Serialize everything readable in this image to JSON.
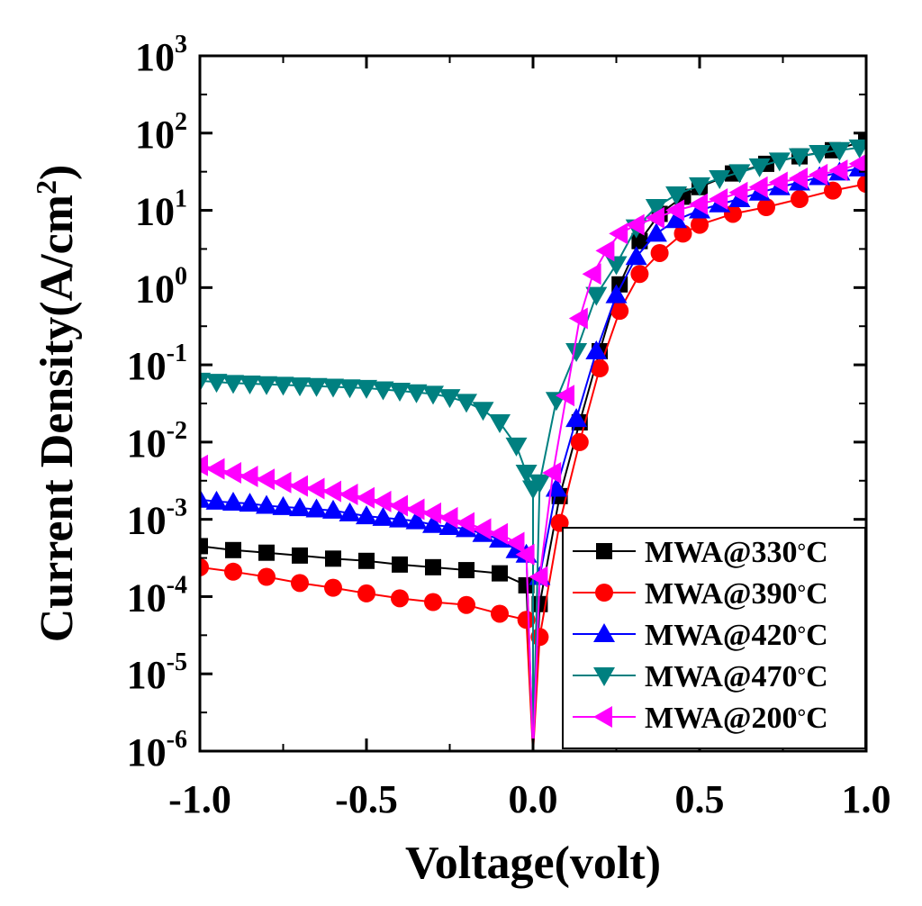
{
  "chart_data": {
    "type": "scatter",
    "title": "",
    "xlabel": "Voltage(volt)",
    "ylabel": "Current Density(A/cm²)",
    "ylabel_parts": {
      "main": "Current Density(A/cm",
      "sup": "2",
      "close": ")"
    },
    "xlim": [
      -1.0,
      1.0
    ],
    "ylim_log10": [
      -6,
      3
    ],
    "yscale": "log",
    "x_ticks": [
      -1.0,
      -0.5,
      0.0,
      0.5,
      1.0
    ],
    "x_tick_labels": [
      "-1.0",
      "-0.5",
      "0.0",
      "0.5",
      "1.0"
    ],
    "y_ticks_exp": [
      -6,
      -5,
      -4,
      -3,
      -2,
      -1,
      0,
      1,
      2,
      3
    ],
    "y_tick_labels": [
      {
        "base": "10",
        "exp": "-6"
      },
      {
        "base": "10",
        "exp": "-5"
      },
      {
        "base": "10",
        "exp": "-4"
      },
      {
        "base": "10",
        "exp": "-3"
      },
      {
        "base": "10",
        "exp": "-2"
      },
      {
        "base": "10",
        "exp": "-1"
      },
      {
        "base": "10",
        "exp": "0"
      },
      {
        "base": "10",
        "exp": "1"
      },
      {
        "base": "10",
        "exp": "2"
      },
      {
        "base": "10",
        "exp": "3"
      }
    ],
    "legend_position": "bottom-right",
    "series": [
      {
        "name": "MWA@330°C",
        "label_main": "MWA@330",
        "label_deg": "°",
        "label_unit": "C",
        "color": "#000000",
        "marker": "square",
        "x": [
          -1.0,
          -0.9,
          -0.8,
          -0.7,
          -0.6,
          -0.5,
          -0.4,
          -0.3,
          -0.2,
          -0.1,
          -0.02,
          0.02,
          0.08,
          0.14,
          0.2,
          0.26,
          0.32,
          0.38,
          0.45,
          0.5,
          0.6,
          0.7,
          0.8,
          0.9,
          1.0
        ],
        "y": [
          0.00045,
          0.0004,
          0.00037,
          0.00034,
          0.00031,
          0.00029,
          0.00026,
          0.00024,
          0.00022,
          0.0002,
          0.00014,
          8e-05,
          0.002,
          0.018,
          0.15,
          1.1,
          4.0,
          9.0,
          15,
          20,
          30,
          40,
          50,
          60,
          80
        ]
      },
      {
        "name": "MWA@390°C",
        "label_main": "MWA@390",
        "label_deg": "°",
        "label_unit": "C",
        "color": "#ff0000",
        "marker": "circle",
        "x": [
          -1.0,
          -0.9,
          -0.8,
          -0.7,
          -0.6,
          -0.5,
          -0.4,
          -0.3,
          -0.2,
          -0.1,
          -0.02,
          0.02,
          0.08,
          0.14,
          0.2,
          0.26,
          0.32,
          0.38,
          0.45,
          0.5,
          0.6,
          0.7,
          0.8,
          0.9,
          1.0
        ],
        "y": [
          0.00024,
          0.00021,
          0.00018,
          0.00015,
          0.00013,
          0.00011,
          9.5e-05,
          8.5e-05,
          7.8e-05,
          6e-05,
          5e-05,
          3e-05,
          0.0009,
          0.01,
          0.09,
          0.5,
          1.5,
          2.8,
          5.0,
          6.5,
          9.0,
          11,
          14,
          18,
          22
        ]
      },
      {
        "name": "MWA@420°C",
        "label_main": "MWA@420",
        "label_deg": "°",
        "label_unit": "C",
        "color": "#0000ff",
        "marker": "triangle-up",
        "x": [
          -1.0,
          -0.95,
          -0.9,
          -0.85,
          -0.8,
          -0.75,
          -0.7,
          -0.65,
          -0.6,
          -0.55,
          -0.5,
          -0.45,
          -0.4,
          -0.35,
          -0.3,
          -0.25,
          -0.2,
          -0.15,
          -0.1,
          -0.05,
          -0.02,
          0.02,
          0.07,
          0.13,
          0.19,
          0.25,
          0.31,
          0.37,
          0.43,
          0.5,
          0.56,
          0.62,
          0.68,
          0.74,
          0.8,
          0.86,
          0.92,
          0.98
        ],
        "y": [
          0.0018,
          0.0017,
          0.00165,
          0.0016,
          0.0015,
          0.00145,
          0.0014,
          0.00135,
          0.0013,
          0.0012,
          0.0011,
          0.00105,
          0.001,
          0.00095,
          0.00085,
          0.0008,
          0.00075,
          0.00065,
          0.00055,
          0.0004,
          0.00035,
          0.00018,
          0.0025,
          0.02,
          0.15,
          0.8,
          2.5,
          5.0,
          7.5,
          10,
          12,
          14,
          17,
          20,
          23,
          27,
          31,
          35
        ]
      },
      {
        "name": "MWA@470°C",
        "label_main": "MWA@470",
        "label_deg": "°",
        "label_unit": "C",
        "color": "#008080",
        "marker": "triangle-down",
        "x": [
          -1.0,
          -0.95,
          -0.9,
          -0.85,
          -0.8,
          -0.75,
          -0.7,
          -0.65,
          -0.6,
          -0.55,
          -0.5,
          -0.45,
          -0.4,
          -0.35,
          -0.3,
          -0.25,
          -0.2,
          -0.15,
          -0.1,
          -0.05,
          -0.02,
          0.0,
          0.02,
          0.07,
          0.13,
          0.19,
          0.25,
          0.31,
          0.37,
          0.43,
          0.5,
          0.56,
          0.62,
          0.68,
          0.74,
          0.8,
          0.86,
          0.92,
          0.98
        ],
        "y": [
          0.062,
          0.06,
          0.058,
          0.057,
          0.056,
          0.055,
          0.054,
          0.053,
          0.052,
          0.051,
          0.05,
          0.048,
          0.046,
          0.044,
          0.042,
          0.038,
          0.033,
          0.026,
          0.018,
          0.009,
          0.004,
          0.0025,
          0.003,
          0.035,
          0.15,
          0.8,
          2.0,
          6.0,
          11,
          16,
          21,
          26,
          31,
          37,
          44,
          50,
          55,
          60,
          65
        ]
      },
      {
        "name": "MWA@200°C",
        "label_main": "MWA@200",
        "label_deg": "°",
        "label_unit": "C",
        "color": "#ff00ff",
        "marker": "triangle-left",
        "x": [
          -1.0,
          -0.95,
          -0.9,
          -0.85,
          -0.8,
          -0.75,
          -0.7,
          -0.65,
          -0.6,
          -0.55,
          -0.5,
          -0.45,
          -0.4,
          -0.35,
          -0.3,
          -0.25,
          -0.2,
          -0.15,
          -0.1,
          -0.05,
          -0.02,
          0.02,
          0.06,
          0.1,
          0.14,
          0.18,
          0.22,
          0.26,
          0.31,
          0.37,
          0.43,
          0.5,
          0.56,
          0.62,
          0.68,
          0.74,
          0.8,
          0.86,
          0.92,
          0.98
        ],
        "y": [
          0.005,
          0.0045,
          0.004,
          0.0036,
          0.0033,
          0.003,
          0.0027,
          0.0025,
          0.0023,
          0.0021,
          0.0019,
          0.0017,
          0.0015,
          0.00135,
          0.0012,
          0.00105,
          0.0009,
          0.00075,
          0.00065,
          0.0005,
          0.00035,
          0.00018,
          0.004,
          0.04,
          0.4,
          1.5,
          3.0,
          5.0,
          6.5,
          8.0,
          10,
          12,
          14,
          17,
          20,
          23,
          26,
          29,
          33,
          40
        ]
      }
    ]
  }
}
